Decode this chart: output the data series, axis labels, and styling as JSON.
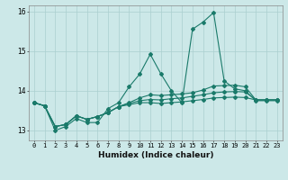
{
  "title": "",
  "xlabel": "Humidex (Indice chaleur)",
  "ylabel": "",
  "bg_color": "#cce8e8",
  "grid_color": "#aacfcf",
  "line_color": "#1a7a6a",
  "xlim": [
    -0.5,
    23.5
  ],
  "ylim": [
    12.75,
    16.15
  ],
  "yticks": [
    13,
    14,
    15,
    16
  ],
  "xticks": [
    0,
    1,
    2,
    3,
    4,
    5,
    6,
    7,
    8,
    9,
    10,
    11,
    12,
    13,
    14,
    15,
    16,
    17,
    18,
    19,
    20,
    21,
    22,
    23
  ],
  "series": [
    [
      13.7,
      13.62,
      13.0,
      13.1,
      13.3,
      13.2,
      13.2,
      13.55,
      13.7,
      14.1,
      14.42,
      14.92,
      14.43,
      14.0,
      13.7,
      15.55,
      15.73,
      15.97,
      14.25,
      14.05,
      14.0,
      13.75,
      13.75,
      13.75
    ],
    [
      13.7,
      13.62,
      13.1,
      13.15,
      13.37,
      13.28,
      13.35,
      13.45,
      13.6,
      13.7,
      13.82,
      13.9,
      13.88,
      13.9,
      13.92,
      13.95,
      14.02,
      14.12,
      14.13,
      14.14,
      14.1,
      13.77,
      13.77,
      13.77
    ],
    [
      13.7,
      13.62,
      13.1,
      13.15,
      13.37,
      13.28,
      13.35,
      13.45,
      13.6,
      13.68,
      13.75,
      13.78,
      13.77,
      13.8,
      13.82,
      13.86,
      13.9,
      13.95,
      13.97,
      13.98,
      13.97,
      13.77,
      13.77,
      13.77
    ],
    [
      13.7,
      13.62,
      13.1,
      13.15,
      13.37,
      13.28,
      13.35,
      13.45,
      13.6,
      13.65,
      13.7,
      13.7,
      13.68,
      13.7,
      13.72,
      13.75,
      13.78,
      13.82,
      13.83,
      13.84,
      13.83,
      13.77,
      13.77,
      13.77
    ]
  ]
}
